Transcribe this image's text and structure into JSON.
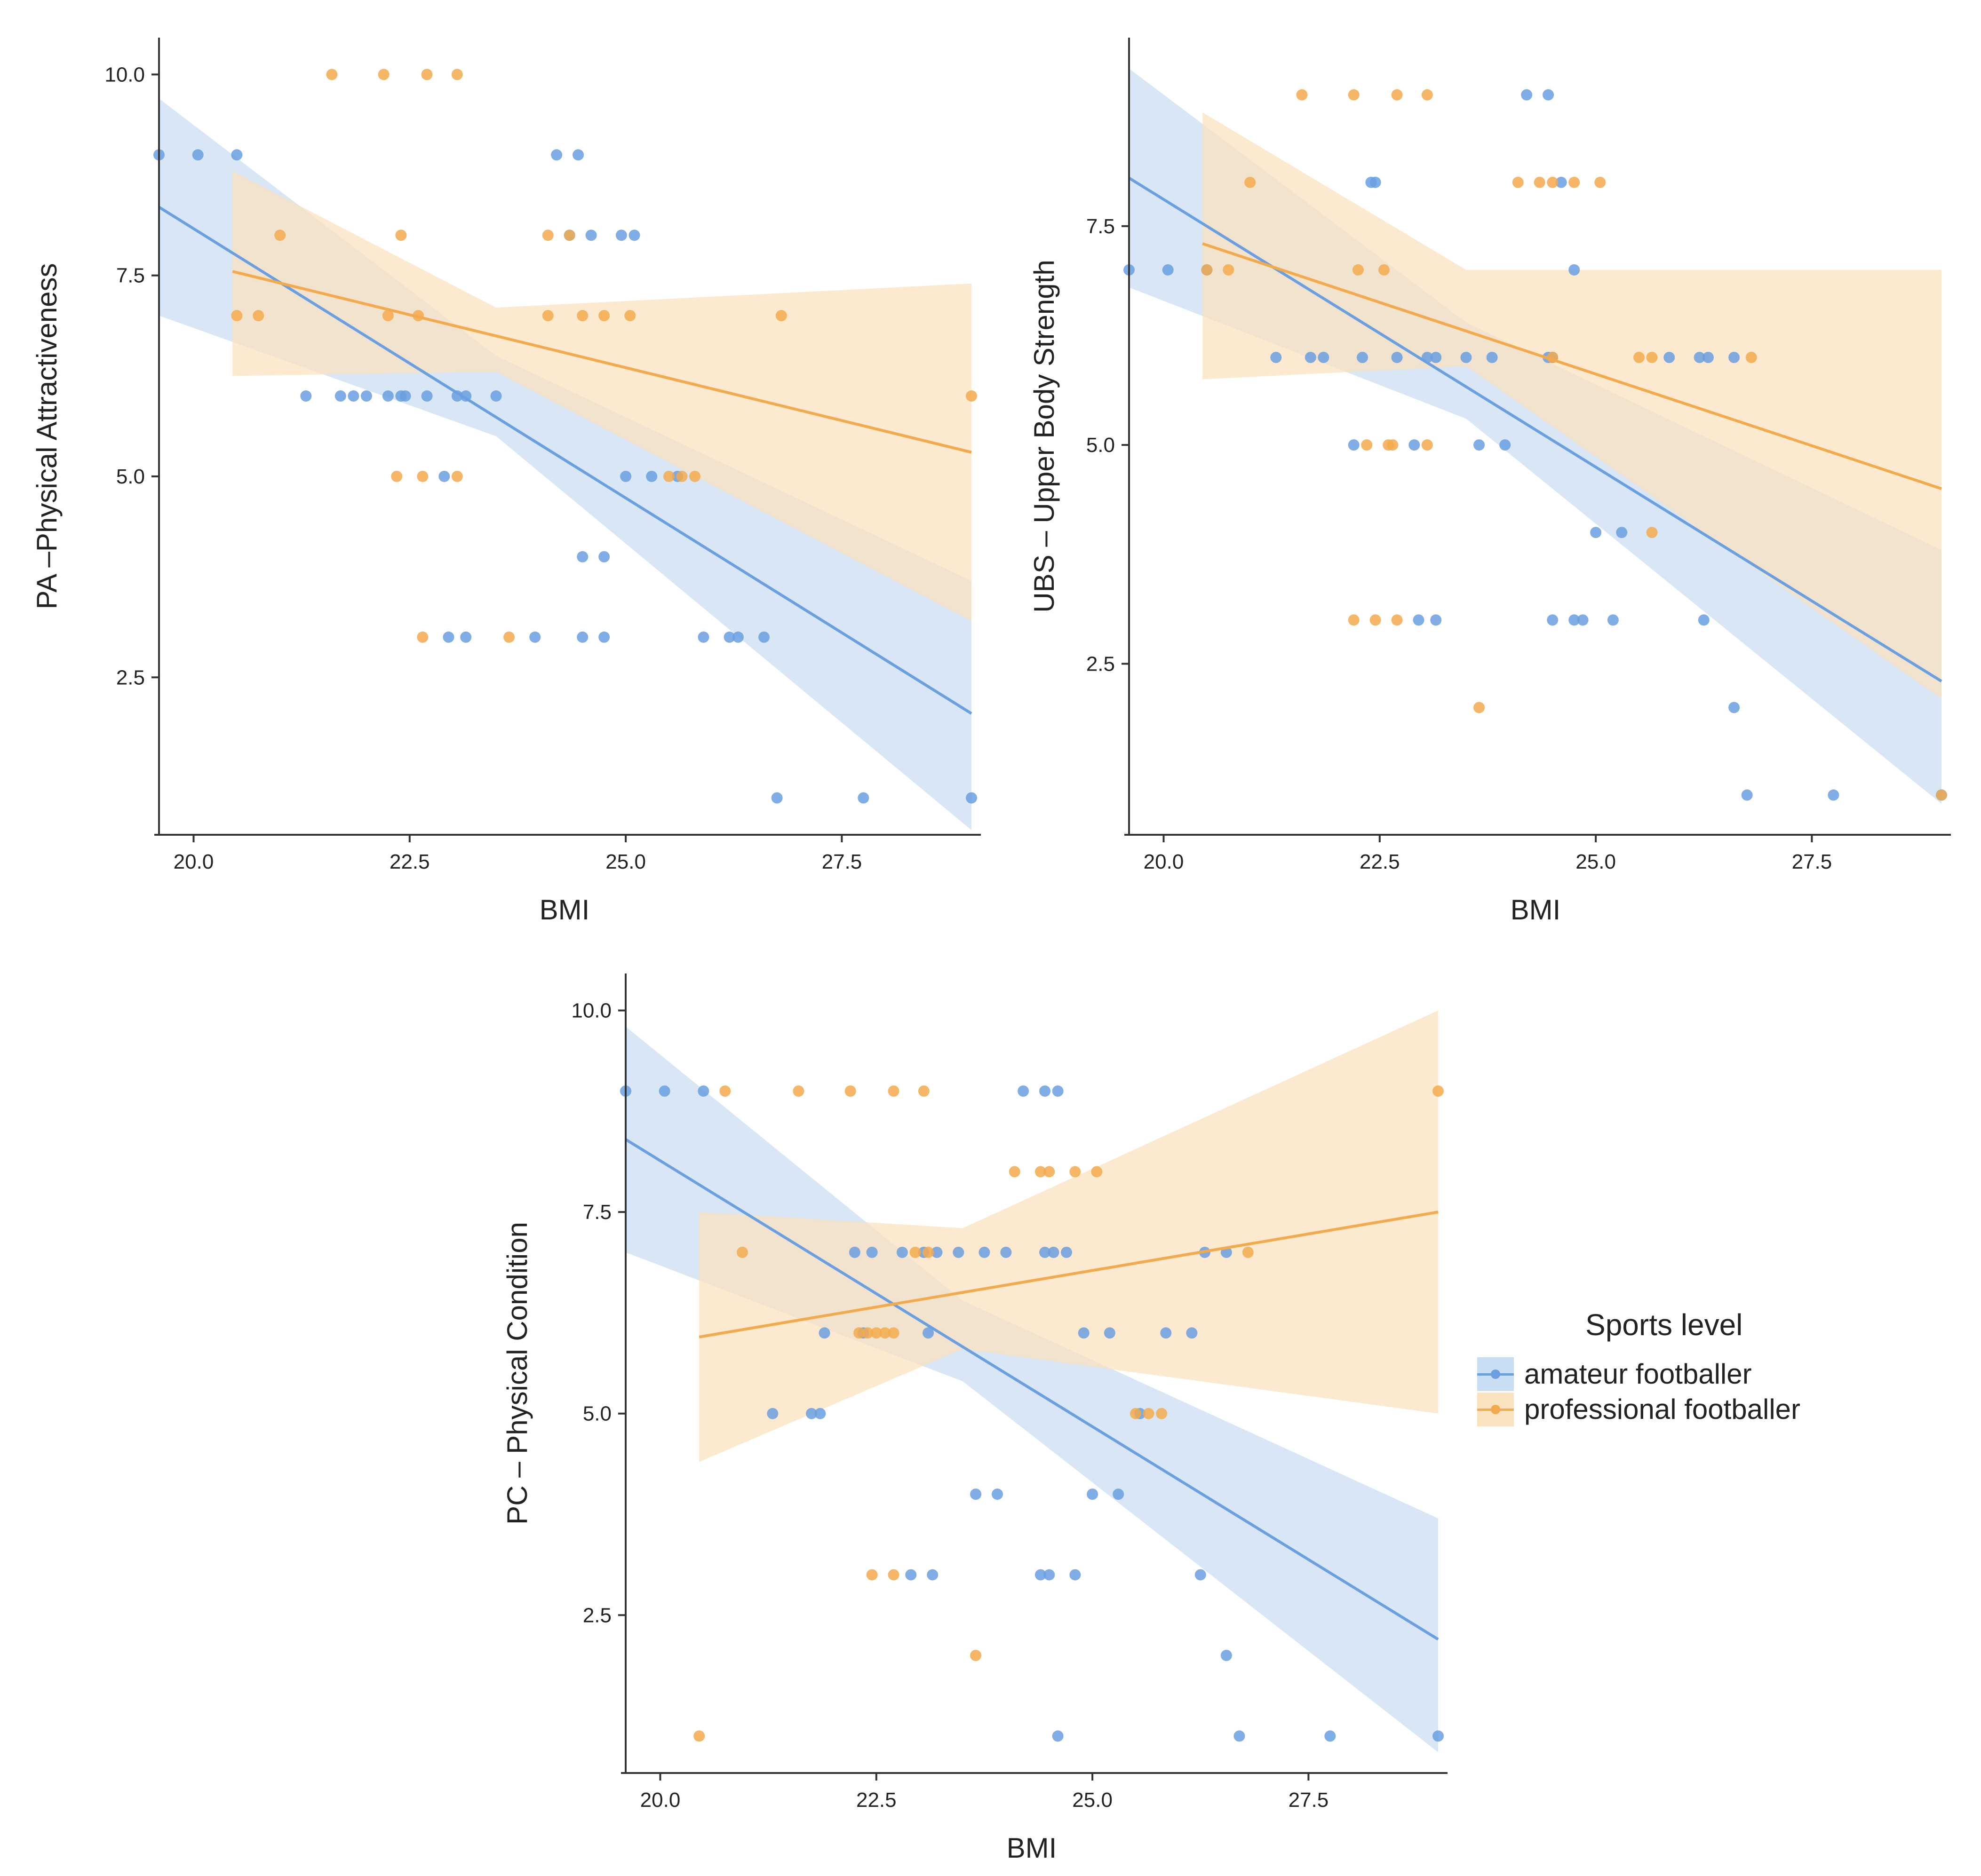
{
  "colors": {
    "amateur": "#6A9FE0",
    "amateur_band": "#C9DDF3",
    "professional": "#F3AA4C",
    "professional_band": "#FBE2BE",
    "axis": "#333333",
    "text": "#222222"
  },
  "legend": {
    "title": "Sports level",
    "items": [
      {
        "key": "amateur",
        "label": "amateur footballer"
      },
      {
        "key": "professional",
        "label": "professional footballer"
      }
    ]
  },
  "chart_data": [
    {
      "id": "pa",
      "type": "scatter",
      "xlabel": "BMI",
      "ylabel": "PA –Physical Attractiveness",
      "xlim": [
        19.6,
        29.0
      ],
      "ylim": [
        0.6,
        10.4
      ],
      "xticks": [
        "20.0",
        "22.5",
        "25.0",
        "27.5"
      ],
      "yticks": [
        "2.5",
        "5.0",
        "7.5",
        "10.0"
      ],
      "series": [
        {
          "name": "amateur footballer",
          "color_key": "amateur",
          "fit": {
            "x": [
              19.6,
              29.0
            ],
            "y": [
              8.35,
              2.05
            ]
          },
          "band": {
            "x": [
              19.6,
              23.5,
              29.0
            ],
            "upper": [
              9.7,
              6.5,
              3.7
            ],
            "lower": [
              7.0,
              5.5,
              0.6
            ]
          },
          "points": [
            [
              19.6,
              9
            ],
            [
              20.05,
              9
            ],
            [
              20.5,
              9
            ],
            [
              24.2,
              9
            ],
            [
              24.45,
              9
            ],
            [
              24.35,
              8
            ],
            [
              24.6,
              8
            ],
            [
              24.95,
              8
            ],
            [
              25.1,
              8
            ],
            [
              21.3,
              6
            ],
            [
              21.7,
              6
            ],
            [
              21.85,
              6
            ],
            [
              22.0,
              6
            ],
            [
              22.25,
              6
            ],
            [
              22.4,
              6
            ],
            [
              22.45,
              6
            ],
            [
              22.7,
              6
            ],
            [
              23.05,
              6
            ],
            [
              23.15,
              6
            ],
            [
              23.5,
              6
            ],
            [
              25.0,
              5
            ],
            [
              25.3,
              5
            ],
            [
              25.6,
              5
            ],
            [
              22.9,
              5
            ],
            [
              24.5,
              4
            ],
            [
              24.75,
              4
            ],
            [
              22.95,
              3
            ],
            [
              23.15,
              3
            ],
            [
              23.95,
              3
            ],
            [
              24.5,
              3
            ],
            [
              24.75,
              3
            ],
            [
              25.9,
              3
            ],
            [
              26.2,
              3
            ],
            [
              26.3,
              3
            ],
            [
              26.6,
              3
            ],
            [
              26.75,
              1
            ],
            [
              27.75,
              1
            ],
            [
              29.0,
              1
            ]
          ]
        },
        {
          "name": "professional footballer",
          "color_key": "professional",
          "fit": {
            "x": [
              20.45,
              29.0
            ],
            "y": [
              7.55,
              5.3
            ]
          },
          "band": {
            "x": [
              20.45,
              23.5,
              29.0
            ],
            "upper": [
              8.8,
              7.1,
              7.4
            ],
            "lower": [
              6.25,
              6.3,
              3.2
            ]
          },
          "points": [
            [
              21.6,
              10
            ],
            [
              22.2,
              10
            ],
            [
              22.7,
              10
            ],
            [
              23.05,
              10
            ],
            [
              21.0,
              8
            ],
            [
              22.4,
              8
            ],
            [
              24.1,
              8
            ],
            [
              24.35,
              8
            ],
            [
              20.5,
              7
            ],
            [
              20.75,
              7
            ],
            [
              22.25,
              7
            ],
            [
              22.6,
              7
            ],
            [
              24.1,
              7
            ],
            [
              24.5,
              7
            ],
            [
              24.75,
              7
            ],
            [
              25.05,
              7
            ],
            [
              26.8,
              7
            ],
            [
              29.0,
              6
            ],
            [
              22.35,
              5
            ],
            [
              22.65,
              5
            ],
            [
              23.05,
              5
            ],
            [
              25.5,
              5
            ],
            [
              25.65,
              5
            ],
            [
              25.8,
              5
            ],
            [
              22.65,
              3
            ],
            [
              23.65,
              3
            ]
          ]
        }
      ]
    },
    {
      "id": "ubs",
      "type": "scatter",
      "xlabel": "BMI",
      "ylabel": "UBS – Upper Body Strength",
      "xlim": [
        19.6,
        29.0
      ],
      "ylim": [
        0.6,
        9.6
      ],
      "xticks": [
        "20.0",
        "22.5",
        "25.0",
        "27.5"
      ],
      "yticks": [
        "2.5",
        "5.0",
        "7.5"
      ],
      "series": [
        {
          "name": "amateur footballer",
          "color_key": "amateur",
          "fit": {
            "x": [
              19.6,
              29.0
            ],
            "y": [
              8.05,
              2.3
            ]
          },
          "band": {
            "x": [
              19.6,
              23.5,
              29.0
            ],
            "upper": [
              9.3,
              6.4,
              3.8
            ],
            "lower": [
              6.8,
              5.3,
              0.9
            ]
          },
          "points": [
            [
              19.6,
              7
            ],
            [
              20.05,
              7
            ],
            [
              20.5,
              7
            ],
            [
              24.75,
              7
            ],
            [
              24.2,
              9
            ],
            [
              24.45,
              9
            ],
            [
              22.4,
              8
            ],
            [
              22.45,
              8
            ],
            [
              24.6,
              8
            ],
            [
              21.3,
              6
            ],
            [
              21.7,
              6
            ],
            [
              21.85,
              6
            ],
            [
              22.3,
              6
            ],
            [
              22.7,
              6
            ],
            [
              23.05,
              6
            ],
            [
              23.15,
              6
            ],
            [
              23.5,
              6
            ],
            [
              23.8,
              6
            ],
            [
              24.45,
              6
            ],
            [
              24.5,
              6
            ],
            [
              25.85,
              6
            ],
            [
              26.2,
              6
            ],
            [
              26.3,
              6
            ],
            [
              26.6,
              6
            ],
            [
              22.2,
              5
            ],
            [
              22.9,
              5
            ],
            [
              23.65,
              5
            ],
            [
              23.95,
              5
            ],
            [
              25.0,
              4
            ],
            [
              25.3,
              4
            ],
            [
              22.95,
              3
            ],
            [
              23.15,
              3
            ],
            [
              24.5,
              3
            ],
            [
              24.75,
              3
            ],
            [
              24.85,
              3
            ],
            [
              25.2,
              3
            ],
            [
              26.25,
              3
            ],
            [
              26.6,
              2
            ],
            [
              26.75,
              1
            ],
            [
              27.75,
              1
            ],
            [
              29.0,
              1
            ]
          ]
        },
        {
          "name": "professional footballer",
          "color_key": "professional",
          "fit": {
            "x": [
              20.45,
              29.0
            ],
            "y": [
              7.3,
              4.5
            ]
          },
          "band": {
            "x": [
              20.45,
              23.5,
              29.0
            ],
            "upper": [
              8.8,
              7.0,
              7.0
            ],
            "lower": [
              5.75,
              5.9,
              2.1
            ]
          },
          "points": [
            [
              21.6,
              9
            ],
            [
              22.2,
              9
            ],
            [
              22.7,
              9
            ],
            [
              23.05,
              9
            ],
            [
              21.0,
              8
            ],
            [
              24.1,
              8
            ],
            [
              24.35,
              8
            ],
            [
              24.5,
              8
            ],
            [
              24.75,
              8
            ],
            [
              25.05,
              8
            ],
            [
              20.5,
              7
            ],
            [
              20.75,
              7
            ],
            [
              22.25,
              7
            ],
            [
              22.55,
              7
            ],
            [
              24.5,
              6
            ],
            [
              25.5,
              6
            ],
            [
              25.65,
              6
            ],
            [
              26.8,
              6
            ],
            [
              22.35,
              5
            ],
            [
              22.6,
              5
            ],
            [
              22.65,
              5
            ],
            [
              23.05,
              5
            ],
            [
              22.2,
              3
            ],
            [
              22.45,
              3
            ],
            [
              22.7,
              3
            ],
            [
              23.65,
              2
            ],
            [
              25.65,
              4
            ],
            [
              29.0,
              1
            ]
          ]
        }
      ]
    },
    {
      "id": "pc",
      "type": "scatter",
      "xlabel": "BMI",
      "ylabel": "PC – Physical Condition",
      "xlim": [
        19.6,
        29.0
      ],
      "ylim": [
        0.6,
        10.4
      ],
      "xticks": [
        "20.0",
        "22.5",
        "25.0",
        "27.5"
      ],
      "yticks": [
        "2.5",
        "5.0",
        "7.5",
        "10.0"
      ],
      "series": [
        {
          "name": "amateur footballer",
          "color_key": "amateur",
          "fit": {
            "x": [
              19.6,
              29.0
            ],
            "y": [
              8.4,
              2.2
            ]
          },
          "band": {
            "x": [
              19.6,
              23.5,
              29.0
            ],
            "upper": [
              9.8,
              6.4,
              3.7
            ],
            "lower": [
              7.0,
              5.4,
              0.8
            ]
          },
          "points": [
            [
              19.6,
              9
            ],
            [
              20.05,
              9
            ],
            [
              20.5,
              9
            ],
            [
              24.2,
              9
            ],
            [
              24.45,
              9
            ],
            [
              24.6,
              9
            ],
            [
              22.25,
              7
            ],
            [
              22.45,
              7
            ],
            [
              22.8,
              7
            ],
            [
              23.05,
              7
            ],
            [
              23.2,
              7
            ],
            [
              23.45,
              7
            ],
            [
              23.75,
              7
            ],
            [
              24.0,
              7
            ],
            [
              24.45,
              7
            ],
            [
              24.55,
              7
            ],
            [
              24.7,
              7
            ],
            [
              26.3,
              7
            ],
            [
              26.55,
              7
            ],
            [
              21.9,
              6
            ],
            [
              22.35,
              6
            ],
            [
              23.1,
              6
            ],
            [
              24.9,
              6
            ],
            [
              25.2,
              6
            ],
            [
              25.85,
              6
            ],
            [
              26.15,
              6
            ],
            [
              21.3,
              5
            ],
            [
              21.75,
              5
            ],
            [
              21.85,
              5
            ],
            [
              25.55,
              5
            ],
            [
              23.65,
              4
            ],
            [
              23.9,
              4
            ],
            [
              25.0,
              4
            ],
            [
              25.3,
              4
            ],
            [
              22.9,
              3
            ],
            [
              23.15,
              3
            ],
            [
              24.4,
              3
            ],
            [
              24.5,
              3
            ],
            [
              24.8,
              3
            ],
            [
              26.25,
              3
            ],
            [
              26.55,
              2
            ],
            [
              24.6,
              1
            ],
            [
              26.7,
              1
            ],
            [
              27.75,
              1
            ],
            [
              29.0,
              1
            ]
          ]
        },
        {
          "name": "professional footballer",
          "color_key": "professional",
          "fit": {
            "x": [
              20.45,
              29.0
            ],
            "y": [
              5.95,
              7.5
            ]
          },
          "band": {
            "x": [
              20.45,
              23.5,
              29.0
            ],
            "upper": [
              7.5,
              7.3,
              10.0
            ],
            "lower": [
              4.4,
              5.8,
              5.0
            ]
          },
          "points": [
            [
              20.75,
              9
            ],
            [
              21.6,
              9
            ],
            [
              22.2,
              9
            ],
            [
              22.7,
              9
            ],
            [
              23.05,
              9
            ],
            [
              29.0,
              9
            ],
            [
              24.1,
              8
            ],
            [
              24.4,
              8
            ],
            [
              24.5,
              8
            ],
            [
              24.8,
              8
            ],
            [
              25.05,
              8
            ],
            [
              20.95,
              7
            ],
            [
              22.95,
              7
            ],
            [
              23.1,
              7
            ],
            [
              26.8,
              7
            ],
            [
              22.3,
              6
            ],
            [
              22.4,
              6
            ],
            [
              22.5,
              6
            ],
            [
              22.6,
              6
            ],
            [
              22.7,
              6
            ],
            [
              25.5,
              5
            ],
            [
              25.65,
              5
            ],
            [
              25.8,
              5
            ],
            [
              22.45,
              3
            ],
            [
              22.7,
              3
            ],
            [
              23.65,
              2
            ],
            [
              20.45,
              1
            ]
          ]
        }
      ]
    }
  ]
}
